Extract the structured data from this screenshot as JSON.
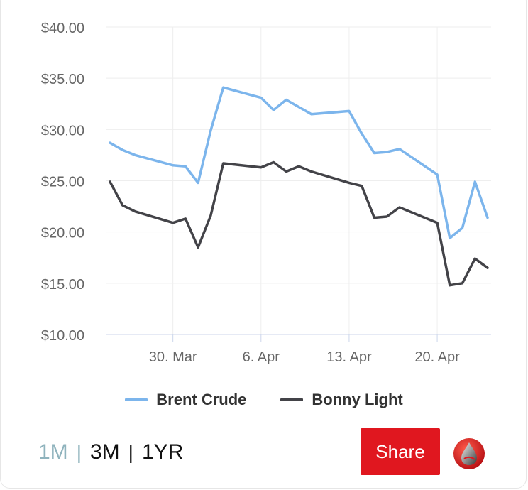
{
  "chart_data": {
    "type": "line",
    "title": "",
    "xlabel": "",
    "ylabel": "",
    "ylim": [
      10,
      40
    ],
    "y_ticks": [
      "$10.00",
      "$15.00",
      "$20.00",
      "$25.00",
      "$30.00",
      "$35.00",
      "$40.00"
    ],
    "y_tick_values": [
      10,
      15,
      20,
      25,
      30,
      35,
      40
    ],
    "x_ticks": [
      "30. Mar",
      "6. Apr",
      "13. Apr",
      "20. Apr"
    ],
    "x_tick_dates": [
      "2020-03-30",
      "2020-04-06",
      "2020-04-13",
      "2020-04-20"
    ],
    "x": [
      "2020-03-25",
      "2020-03-26",
      "2020-03-27",
      "2020-03-30",
      "2020-03-31",
      "2020-04-01",
      "2020-04-02",
      "2020-04-03",
      "2020-04-06",
      "2020-04-07",
      "2020-04-08",
      "2020-04-09",
      "2020-04-10",
      "2020-04-13",
      "2020-04-14",
      "2020-04-15",
      "2020-04-16",
      "2020-04-17",
      "2020-04-20",
      "2020-04-21",
      "2020-04-22",
      "2020-04-23",
      "2020-04-24"
    ],
    "grid": true,
    "legend_position": "bottom",
    "series": [
      {
        "name": "Brent Crude",
        "color": "#7cb5ec",
        "values": [
          28.7,
          28.0,
          27.5,
          26.5,
          26.4,
          24.8,
          29.9,
          34.1,
          33.1,
          31.9,
          32.9,
          32.2,
          31.5,
          31.8,
          29.6,
          27.7,
          27.8,
          28.1,
          25.6,
          19.4,
          20.4,
          24.9,
          21.4
        ]
      },
      {
        "name": "Bonny Light",
        "color": "#434348",
        "values": [
          24.9,
          22.6,
          22.0,
          20.9,
          21.3,
          18.5,
          21.6,
          26.7,
          26.3,
          26.8,
          25.9,
          26.4,
          25.9,
          24.8,
          24.5,
          21.4,
          21.5,
          22.4,
          20.9,
          14.8,
          15.0,
          17.4,
          16.5
        ]
      }
    ]
  },
  "controls": {
    "range_1m": "1M",
    "range_3m": "3M",
    "range_1yr": "1YR",
    "separator": "|",
    "active_range": "1M",
    "share_label": "Share",
    "share_color": "#e0171f",
    "logo_icon": "oil-drop-logo-icon"
  }
}
